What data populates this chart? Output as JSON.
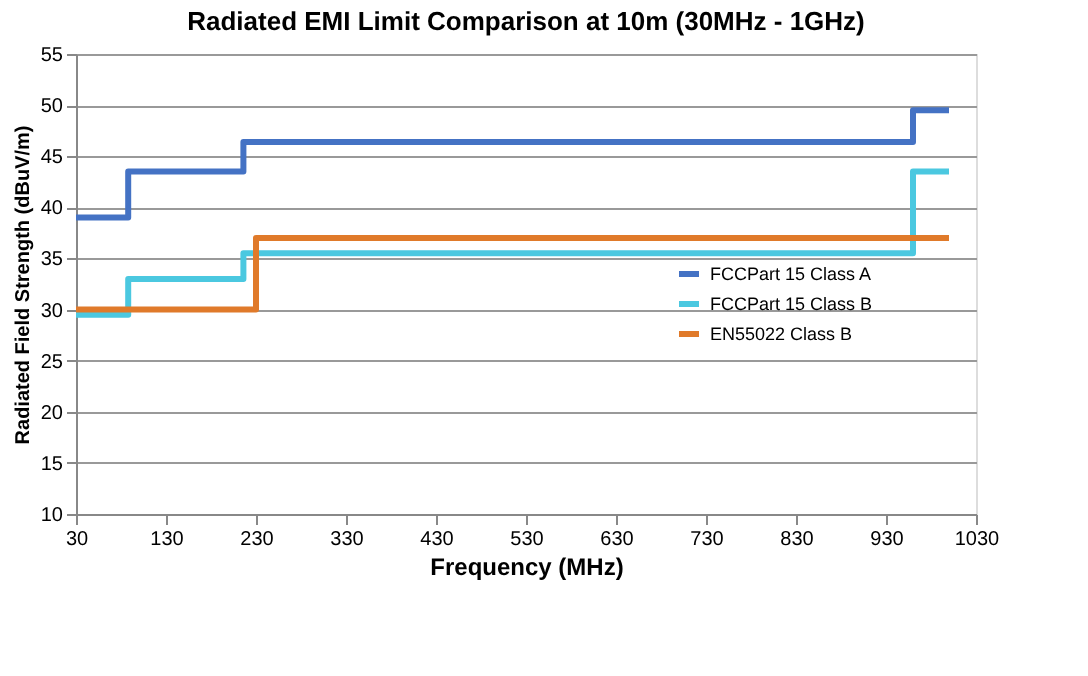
{
  "chart_data": {
    "type": "step",
    "title": "Radiated EMI Limit Comparison at 10m (30MHz - 1GHz)",
    "xlabel": "Frequency (MHz)",
    "ylabel": "Radiated Field Strength (dBuV/m)",
    "series": [
      {
        "name": "FCCPart 15 Class A",
        "color": "#4472c4",
        "x": [
          30,
          88,
          216,
          960,
          1000
        ],
        "values": [
          39,
          43.5,
          46.4,
          49.5,
          49.5
        ]
      },
      {
        "name": "FCCPart 15 Class B",
        "color": "#4bc8e0",
        "x": [
          30,
          88,
          216,
          960,
          1000
        ],
        "values": [
          29.5,
          33,
          35.5,
          43.5,
          43.5
        ]
      },
      {
        "name": "EN55022 Class B",
        "color": "#e07a2a",
        "x": [
          30,
          230,
          1000
        ],
        "values": [
          30,
          37,
          37
        ]
      }
    ],
    "xlim": [
      30,
      1030
    ],
    "xticks": [
      30,
      130,
      230,
      330,
      430,
      530,
      630,
      730,
      830,
      930,
      1030
    ],
    "ylim": [
      10,
      55
    ],
    "yticks": [
      10,
      15,
      20,
      25,
      30,
      35,
      40,
      45,
      50,
      55
    ],
    "grid": "y",
    "legend": "right"
  }
}
